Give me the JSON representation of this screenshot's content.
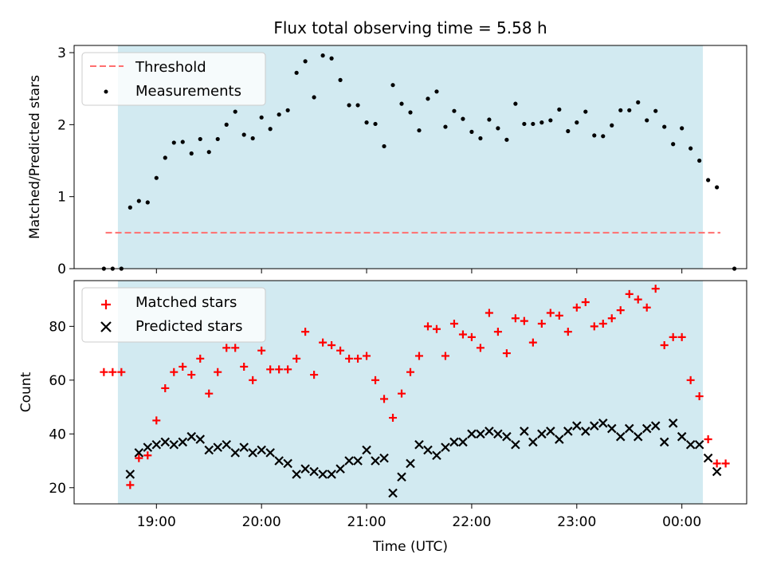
{
  "chart_data": [
    {
      "type": "scatter",
      "title": "Flux total observing time = 5.58 h",
      "ylabel": "Matched/Predicted stars",
      "xlabel": "",
      "xlim": [
        "18:13",
        "00:37"
      ],
      "ylim": [
        0,
        3.1
      ],
      "x_ticks": [
        "19:00",
        "20:00",
        "21:00",
        "22:00",
        "23:00",
        "00:00"
      ],
      "y_ticks": [
        "0",
        "1",
        "2",
        "3"
      ],
      "grid": false,
      "legend_position": "upper-left",
      "shaded_interval": {
        "start": "18:38",
        "end": "00:12",
        "color": "#add8e6"
      },
      "threshold": {
        "name": "Threshold",
        "value": 0.5,
        "x_start": "18:31",
        "x_end": "00:22",
        "color": "#ff6f6f",
        "style": "dashed"
      },
      "measurements": {
        "name": "Measurements",
        "color": "#000000",
        "points": [
          [
            "18:30",
            0
          ],
          [
            "18:35",
            0
          ],
          [
            "18:40",
            0
          ],
          [
            "18:45",
            0.85
          ],
          [
            "18:50",
            0.94
          ],
          [
            "18:55",
            0.92
          ],
          [
            "19:00",
            1.26
          ],
          [
            "19:05",
            1.54
          ],
          [
            "19:10",
            1.75
          ],
          [
            "19:15",
            1.76
          ],
          [
            "19:20",
            1.6
          ],
          [
            "19:25",
            1.8
          ],
          [
            "19:30",
            1.62
          ],
          [
            "19:35",
            1.8
          ],
          [
            "19:40",
            2.0
          ],
          [
            "19:45",
            2.18
          ],
          [
            "19:50",
            1.86
          ],
          [
            "19:55",
            1.81
          ],
          [
            "20:00",
            2.1
          ],
          [
            "20:05",
            1.94
          ],
          [
            "20:10",
            2.14
          ],
          [
            "20:15",
            2.2
          ],
          [
            "20:20",
            2.72
          ],
          [
            "20:25",
            2.88
          ],
          [
            "20:30",
            2.38
          ],
          [
            "20:35",
            2.96
          ],
          [
            "20:40",
            2.92
          ],
          [
            "20:45",
            2.62
          ],
          [
            "20:50",
            2.27
          ],
          [
            "20:55",
            2.27
          ],
          [
            "21:00",
            2.03
          ],
          [
            "21:05",
            2.01
          ],
          [
            "21:10",
            1.7
          ],
          [
            "21:15",
            2.55
          ],
          [
            "21:20",
            2.29
          ],
          [
            "21:25",
            2.17
          ],
          [
            "21:30",
            1.92
          ],
          [
            "21:35",
            2.36
          ],
          [
            "21:40",
            2.46
          ],
          [
            "21:45",
            1.97
          ],
          [
            "21:50",
            2.19
          ],
          [
            "21:55",
            2.08
          ],
          [
            "22:00",
            1.9
          ],
          [
            "22:05",
            1.81
          ],
          [
            "22:10",
            2.07
          ],
          [
            "22:15",
            1.95
          ],
          [
            "22:20",
            1.79
          ],
          [
            "22:25",
            2.29
          ],
          [
            "22:30",
            2.01
          ],
          [
            "22:35",
            2.01
          ],
          [
            "22:40",
            2.03
          ],
          [
            "22:45",
            2.06
          ],
          [
            "22:50",
            2.21
          ],
          [
            "22:55",
            1.91
          ],
          [
            "23:00",
            2.03
          ],
          [
            "23:05",
            2.18
          ],
          [
            "23:10",
            1.85
          ],
          [
            "23:15",
            1.84
          ],
          [
            "23:20",
            1.99
          ],
          [
            "23:25",
            2.2
          ],
          [
            "23:30",
            2.2
          ],
          [
            "23:35",
            2.31
          ],
          [
            "23:40",
            2.06
          ],
          [
            "23:45",
            2.19
          ],
          [
            "23:50",
            1.97
          ],
          [
            "23:55",
            1.73
          ],
          [
            "00:00",
            1.95
          ],
          [
            "00:05",
            1.67
          ],
          [
            "00:10",
            1.5
          ],
          [
            "00:15",
            1.23
          ],
          [
            "00:20",
            1.13
          ],
          [
            "00:30",
            0
          ]
        ]
      }
    },
    {
      "type": "scatter",
      "title": "",
      "xlabel": "Time (UTC)",
      "ylabel": "Count",
      "xlim": [
        "18:13",
        "00:37"
      ],
      "ylim": [
        14,
        97
      ],
      "x_ticks": [
        "19:00",
        "20:00",
        "21:00",
        "22:00",
        "23:00",
        "00:00"
      ],
      "y_ticks": [
        "20",
        "40",
        "60",
        "80"
      ],
      "grid": false,
      "legend_position": "upper-left",
      "shaded_interval": {
        "start": "18:38",
        "end": "00:12",
        "color": "#add8e6"
      },
      "series": [
        {
          "name": "Matched stars",
          "marker": "plus",
          "color": "#ff0000",
          "points": [
            [
              "18:30",
              63
            ],
            [
              "18:35",
              63
            ],
            [
              "18:40",
              63
            ],
            [
              "18:45",
              21
            ],
            [
              "18:50",
              31
            ],
            [
              "18:55",
              32
            ],
            [
              "19:00",
              45
            ],
            [
              "19:05",
              57
            ],
            [
              "19:10",
              63
            ],
            [
              "19:15",
              65
            ],
            [
              "19:20",
              62
            ],
            [
              "19:25",
              68
            ],
            [
              "19:30",
              55
            ],
            [
              "19:35",
              63
            ],
            [
              "19:40",
              72
            ],
            [
              "19:45",
              72
            ],
            [
              "19:50",
              65
            ],
            [
              "19:55",
              60
            ],
            [
              "20:00",
              71
            ],
            [
              "20:05",
              64
            ],
            [
              "20:10",
              64
            ],
            [
              "20:15",
              64
            ],
            [
              "20:20",
              68
            ],
            [
              "20:25",
              78
            ],
            [
              "20:30",
              62
            ],
            [
              "20:35",
              74
            ],
            [
              "20:40",
              73
            ],
            [
              "20:45",
              71
            ],
            [
              "20:50",
              68
            ],
            [
              "20:55",
              68
            ],
            [
              "21:00",
              69
            ],
            [
              "21:05",
              60
            ],
            [
              "21:10",
              53
            ],
            [
              "21:15",
              46
            ],
            [
              "21:20",
              55
            ],
            [
              "21:25",
              63
            ],
            [
              "21:30",
              69
            ],
            [
              "21:35",
              80
            ],
            [
              "21:40",
              79
            ],
            [
              "21:45",
              69
            ],
            [
              "21:50",
              81
            ],
            [
              "21:55",
              77
            ],
            [
              "22:00",
              76
            ],
            [
              "22:05",
              72
            ],
            [
              "22:10",
              85
            ],
            [
              "22:15",
              78
            ],
            [
              "22:20",
              70
            ],
            [
              "22:25",
              83
            ],
            [
              "22:30",
              82
            ],
            [
              "22:35",
              74
            ],
            [
              "22:40",
              81
            ],
            [
              "22:45",
              85
            ],
            [
              "22:50",
              84
            ],
            [
              "22:55",
              78
            ],
            [
              "23:00",
              87
            ],
            [
              "23:05",
              89
            ],
            [
              "23:10",
              80
            ],
            [
              "23:15",
              81
            ],
            [
              "23:20",
              83
            ],
            [
              "23:25",
              86
            ],
            [
              "23:30",
              92
            ],
            [
              "23:35",
              90
            ],
            [
              "23:40",
              87
            ],
            [
              "23:45",
              94
            ],
            [
              "23:50",
              73
            ],
            [
              "23:55",
              76
            ],
            [
              "00:00",
              76
            ],
            [
              "00:05",
              60
            ],
            [
              "00:10",
              54
            ],
            [
              "00:15",
              38
            ],
            [
              "00:20",
              29
            ],
            [
              "00:25",
              29
            ]
          ]
        },
        {
          "name": "Predicted stars",
          "marker": "x",
          "color": "#000000",
          "points": [
            [
              "18:45",
              25
            ],
            [
              "18:50",
              33
            ],
            [
              "18:55",
              35
            ],
            [
              "19:00",
              36
            ],
            [
              "19:05",
              37
            ],
            [
              "19:10",
              36
            ],
            [
              "19:15",
              37
            ],
            [
              "19:20",
              39
            ],
            [
              "19:25",
              38
            ],
            [
              "19:30",
              34
            ],
            [
              "19:35",
              35
            ],
            [
              "19:40",
              36
            ],
            [
              "19:45",
              33
            ],
            [
              "19:50",
              35
            ],
            [
              "19:55",
              33
            ],
            [
              "20:00",
              34
            ],
            [
              "20:05",
              33
            ],
            [
              "20:10",
              30
            ],
            [
              "20:15",
              29
            ],
            [
              "20:20",
              25
            ],
            [
              "20:25",
              27
            ],
            [
              "20:30",
              26
            ],
            [
              "20:35",
              25
            ],
            [
              "20:40",
              25
            ],
            [
              "20:45",
              27
            ],
            [
              "20:50",
              30
            ],
            [
              "20:55",
              30
            ],
            [
              "21:00",
              34
            ],
            [
              "21:05",
              30
            ],
            [
              "21:10",
              31
            ],
            [
              "21:15",
              18
            ],
            [
              "21:20",
              24
            ],
            [
              "21:25",
              29
            ],
            [
              "21:30",
              36
            ],
            [
              "21:35",
              34
            ],
            [
              "21:40",
              32
            ],
            [
              "21:45",
              35
            ],
            [
              "21:50",
              37
            ],
            [
              "21:55",
              37
            ],
            [
              "22:00",
              40
            ],
            [
              "22:05",
              40
            ],
            [
              "22:10",
              41
            ],
            [
              "22:15",
              40
            ],
            [
              "22:20",
              39
            ],
            [
              "22:25",
              36
            ],
            [
              "22:30",
              41
            ],
            [
              "22:35",
              37
            ],
            [
              "22:40",
              40
            ],
            [
              "22:45",
              41
            ],
            [
              "22:50",
              38
            ],
            [
              "22:55",
              41
            ],
            [
              "23:00",
              43
            ],
            [
              "23:05",
              41
            ],
            [
              "23:10",
              43
            ],
            [
              "23:15",
              44
            ],
            [
              "23:20",
              42
            ],
            [
              "23:25",
              39
            ],
            [
              "23:30",
              42
            ],
            [
              "23:35",
              39
            ],
            [
              "23:40",
              42
            ],
            [
              "23:45",
              43
            ],
            [
              "23:50",
              37
            ],
            [
              "23:55",
              44
            ],
            [
              "00:00",
              39
            ],
            [
              "00:05",
              36
            ],
            [
              "00:10",
              36
            ],
            [
              "00:15",
              31
            ],
            [
              "00:20",
              26
            ]
          ]
        }
      ]
    }
  ]
}
